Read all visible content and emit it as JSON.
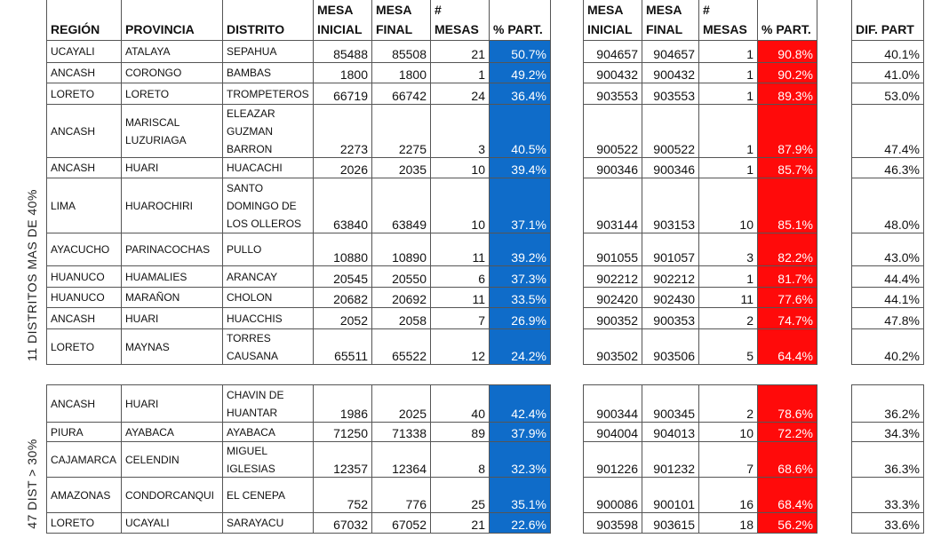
{
  "headers": [
    "REGIÓN",
    "PROVINCIA",
    "DISTRITO",
    "MESA INICIAL",
    "MESA FINAL",
    "# MESAS",
    "% PART.",
    "MESA INICIAL",
    "MESA FINAL",
    "# MESAS",
    "% PART.",
    "DIF. PART"
  ],
  "groups": [
    {
      "label": "11 DISTRITOS MAS DE 40%",
      "rows": [
        [
          "UCAYALI",
          "ATALAYA",
          "SEPAHUA",
          "85488",
          "85508",
          "21",
          "50.7%",
          "904657",
          "904657",
          "1",
          "90.8%",
          "40.1%"
        ],
        [
          "ANCASH",
          "CORONGO",
          "BAMBAS",
          "1800",
          "1800",
          "1",
          "49.2%",
          "900432",
          "900432",
          "1",
          "90.2%",
          "41.0%"
        ],
        [
          "LORETO",
          "LORETO",
          "TROMPETEROS",
          "66719",
          "66742",
          "24",
          "36.4%",
          "903553",
          "903553",
          "1",
          "89.3%",
          "53.0%"
        ],
        [
          "ANCASH",
          "MARISCAL LUZURIAGA",
          "ELEAZAR GUZMAN BARRON",
          "2273",
          "2275",
          "3",
          "40.5%",
          "900522",
          "900522",
          "1",
          "87.9%",
          "47.4%"
        ],
        [
          "ANCASH",
          "HUARI",
          "HUACACHI",
          "2026",
          "2035",
          "10",
          "39.4%",
          "900346",
          "900346",
          "1",
          "85.7%",
          "46.3%"
        ],
        [
          "LIMA",
          "HUAROCHIRI",
          "SANTO DOMINGO DE LOS OLLEROS",
          "63840",
          "63849",
          "10",
          "37.1%",
          "903144",
          "903153",
          "10",
          "85.1%",
          "48.0%"
        ],
        [
          "AYACUCHO",
          "PARINACOCHAS",
          "PULLO",
          "10880",
          "10890",
          "11",
          "39.2%",
          "901055",
          "901057",
          "3",
          "82.2%",
          "43.0%"
        ],
        [
          "HUANUCO",
          "HUAMALIES",
          "ARANCAY",
          "20545",
          "20550",
          "6",
          "37.3%",
          "902212",
          "902212",
          "1",
          "81.7%",
          "44.4%"
        ],
        [
          "HUANUCO",
          "MARAÑON",
          "CHOLON",
          "20682",
          "20692",
          "11",
          "33.5%",
          "902420",
          "902430",
          "11",
          "77.6%",
          "44.1%"
        ],
        [
          "ANCASH",
          "HUARI",
          "HUACCHIS",
          "2052",
          "2058",
          "7",
          "26.9%",
          "900352",
          "900353",
          "2",
          "74.7%",
          "47.8%"
        ],
        [
          "LORETO",
          "MAYNAS",
          "TORRES CAUSANA",
          "65511",
          "65522",
          "12",
          "24.2%",
          "903502",
          "903506",
          "5",
          "64.4%",
          "40.2%"
        ]
      ]
    },
    {
      "label": "47 DIST > 30%",
      "rows": [
        [
          "ANCASH",
          "HUARI",
          "CHAVIN DE HUANTAR",
          "1986",
          "2025",
          "40",
          "42.4%",
          "900344",
          "900345",
          "2",
          "78.6%",
          "36.2%"
        ],
        [
          "PIURA",
          "AYABACA",
          "AYABACA",
          "71250",
          "71338",
          "89",
          "37.9%",
          "904004",
          "904013",
          "10",
          "72.2%",
          "34.3%"
        ],
        [
          "CAJAMARCA",
          "CELENDIN",
          "MIGUEL IGLESIAS",
          "12357",
          "12364",
          "8",
          "32.3%",
          "901226",
          "901232",
          "7",
          "68.6%",
          "36.3%"
        ],
        [
          "AMAZONAS",
          "CONDORCANQUI",
          "EL CENEPA",
          "752",
          "776",
          "25",
          "35.1%",
          "900086",
          "900101",
          "16",
          "68.4%",
          "33.3%"
        ],
        [
          "LORETO",
          "UCAYALI",
          "SARAYACU",
          "67032",
          "67052",
          "21",
          "22.6%",
          "903598",
          "903615",
          "18",
          "56.2%",
          "33.6%"
        ]
      ]
    }
  ]
}
